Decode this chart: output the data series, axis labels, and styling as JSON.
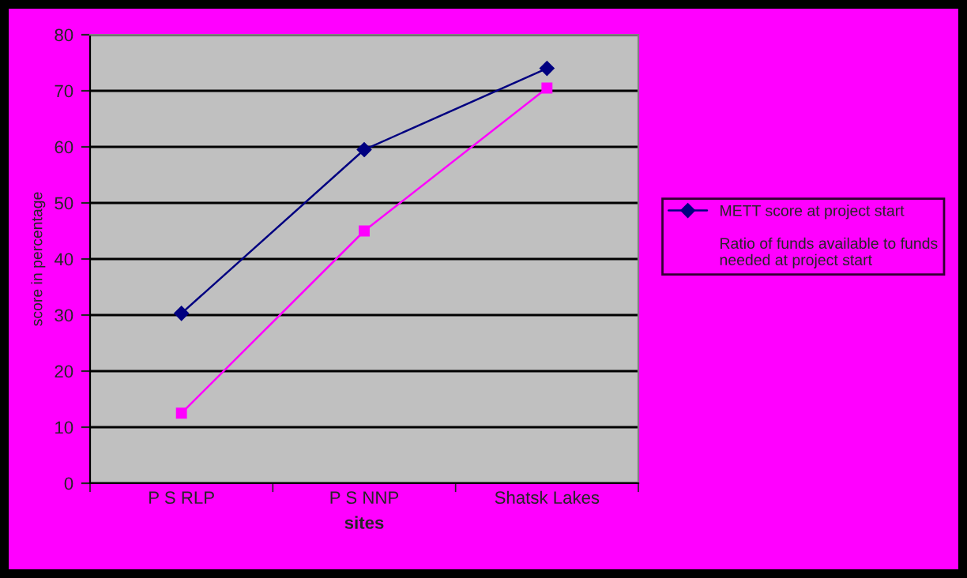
{
  "chart_data": {
    "type": "line",
    "xlabel": "sites",
    "ylabel": "score in percentage",
    "categories": [
      "P S RLP",
      "P S NNP",
      "Shatsk Lakes"
    ],
    "series": [
      {
        "name": "METT score at project start",
        "color": "#000080",
        "values": [
          30.3,
          59.5,
          74
        ],
        "marker": "diamond"
      },
      {
        "name": "Ratio of funds available to funds needed at project start",
        "color": "#ff00ff",
        "values": [
          12.5,
          45,
          70.5
        ],
        "marker": "square"
      }
    ],
    "ylim": [
      0,
      80
    ],
    "yticks": [
      0,
      10,
      20,
      30,
      40,
      50,
      60,
      70,
      80
    ],
    "grid": "y",
    "legend": "right"
  }
}
